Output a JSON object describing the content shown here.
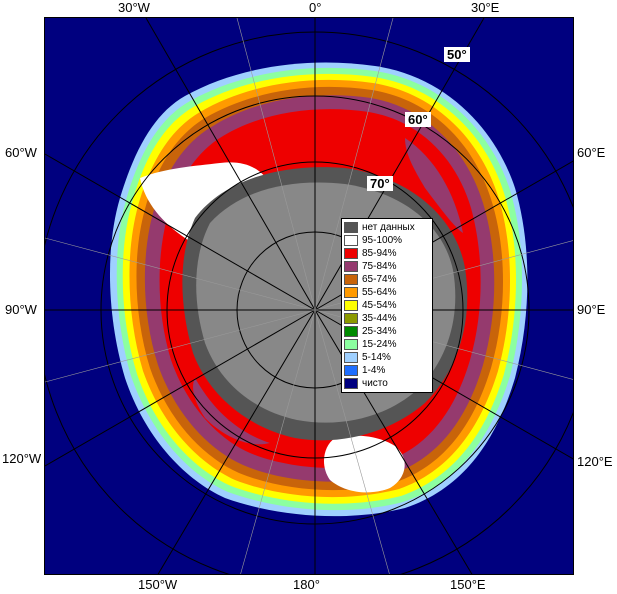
{
  "map": {
    "colors": {
      "ocean": "#00007f",
      "land": "#888888",
      "shelf": "#555555",
      "ice_high": "#ee0000",
      "ice_mid": "#953a6e",
      "ice_full": "#ffffff"
    },
    "meridian_labels": {
      "top_30w": "30°W",
      "top_0": "0°",
      "top_30e": "30°E",
      "left_60w": "60°W",
      "right_60e": "60°E",
      "left_90w": "90°W",
      "right_90e": "90°E",
      "left_120w": "120°W",
      "right_120e": "120°E",
      "bottom_150w": "150°W",
      "bottom_180": "180°",
      "bottom_150e": "150°E"
    },
    "latitude_labels": {
      "lat_50": "50°",
      "lat_60": "60°",
      "lat_70": "70°"
    }
  },
  "legend": {
    "items": [
      {
        "label": "нет данных",
        "color": "#555555"
      },
      {
        "label": "95-100%",
        "color": "#ffffff"
      },
      {
        "label": "85-94%",
        "color": "#ee0000"
      },
      {
        "label": "75-84%",
        "color": "#953a6e"
      },
      {
        "label": "65-74%",
        "color": "#c8640a"
      },
      {
        "label": "55-64%",
        "color": "#ff9a00"
      },
      {
        "label": "45-54%",
        "color": "#ffff00"
      },
      {
        "label": "35-44%",
        "color": "#8c9a00"
      },
      {
        "label": "25-34%",
        "color": "#008a00"
      },
      {
        "label": "15-24%",
        "color": "#8cffa0"
      },
      {
        "label": "5-14%",
        "color": "#9fd0ff"
      },
      {
        "label": "1-4%",
        "color": "#1e6eff"
      },
      {
        "label": "чисто",
        "color": "#00007f"
      }
    ]
  }
}
